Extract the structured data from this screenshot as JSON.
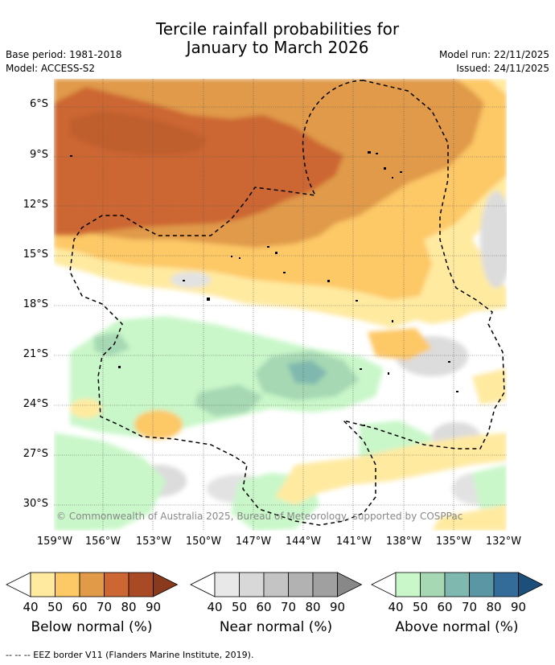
{
  "title_line1": "Tercile rainfall probabilities for",
  "title_line2": "January to March 2026",
  "base_period": "Base period: 1981-2018",
  "model": "Model: ACCESS-S2",
  "model_run": "Model run: 22/11/2025",
  "issued": "Issued: 24/11/2025",
  "copyright": "© Commonwealth of Australia 2025, Bureau of Meteorology, supported by COSPPac",
  "lat_labels": [
    "6°S",
    "9°S",
    "12°S",
    "15°S",
    "18°S",
    "21°S",
    "24°S",
    "27°S",
    "30°S"
  ],
  "lon_labels": [
    "159°W",
    "156°W",
    "153°W",
    "150°W",
    "147°W",
    "144°W",
    "141°W",
    "138°W",
    "135°W",
    "132°W"
  ],
  "legends": [
    {
      "name": "below",
      "title": "Below normal (%)",
      "ticks": [
        "40",
        "50",
        "60",
        "70",
        "80",
        "90"
      ],
      "colors": [
        "#ffeaa0",
        "#fdc866",
        "#e09a48",
        "#cc6633",
        "#a84a25",
        "#8a3a1c"
      ]
    },
    {
      "name": "near",
      "title": "Near normal (%)",
      "ticks": [
        "40",
        "50",
        "60",
        "70",
        "80",
        "90"
      ],
      "colors": [
        "#e8e8e8",
        "#d8d8d8",
        "#c4c4c4",
        "#b2b2b2",
        "#a0a0a0",
        "#888888"
      ]
    },
    {
      "name": "above",
      "title": "Above normal (%)",
      "ticks": [
        "40",
        "50",
        "60",
        "70",
        "80",
        "90"
      ],
      "colors": [
        "#c9f7c9",
        "#a6d8b4",
        "#7fb8ae",
        "#5a96a4",
        "#336b99",
        "#1c4f7a"
      ]
    }
  ],
  "footnote": "--  --  -- EEZ border V11 (Flanders Marine Institute, 2019)."
}
